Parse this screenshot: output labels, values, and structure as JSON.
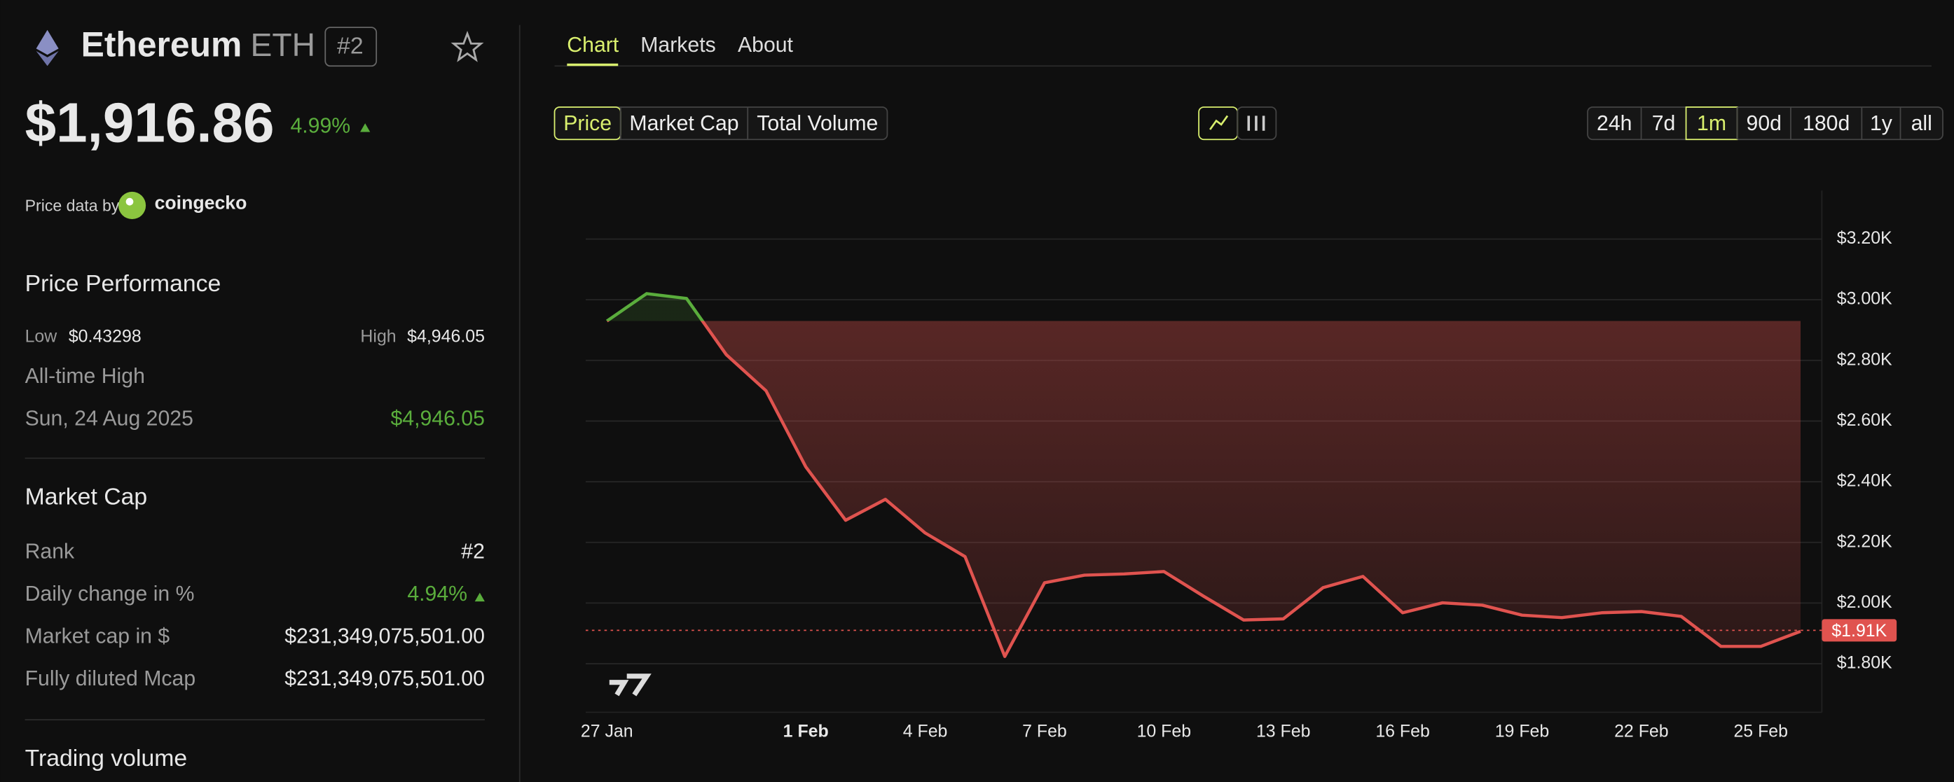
{
  "header": {
    "name": "Ethereum",
    "symbol": "ETH",
    "rank": "#2",
    "price": "$1,916.86",
    "change": "4.99%",
    "source_label": "Price data by",
    "source": "coingecko"
  },
  "performance": {
    "title": "Price Performance",
    "low_label": "Low",
    "low": "$0.43298",
    "high_label": "High",
    "high": "$4,946.05",
    "ath_label": "All-time High",
    "ath_date": "Sun, 24 Aug 2025",
    "ath_value": "$4,946.05"
  },
  "market_cap": {
    "title": "Market Cap",
    "rows": [
      [
        "Rank",
        "#2"
      ],
      [
        "Daily change in %",
        "4.94%"
      ],
      [
        "Market cap in $",
        "$231,349,075,501.00"
      ],
      [
        "Fully diluted Mcap",
        "$231,349,075,501.00"
      ]
    ]
  },
  "trading_volume": {
    "title": "Trading volume"
  },
  "tabs": [
    "Chart",
    "Markets",
    "About"
  ],
  "metric_tabs": [
    "Price",
    "Market Cap",
    "Total Volume"
  ],
  "ranges": [
    "24h",
    "7d",
    "1m",
    "90d",
    "180d",
    "1y",
    "all"
  ],
  "chart_data": {
    "type": "line",
    "categories": [
      "27 Jan",
      null,
      null,
      null,
      null,
      "1 Feb",
      null,
      null,
      "4 Feb",
      null,
      null,
      "7 Feb",
      null,
      null,
      "10 Feb",
      null,
      null,
      "13 Feb",
      null,
      null,
      "16 Feb",
      null,
      null,
      "19 Feb",
      null,
      null,
      "22 Feb",
      null,
      null,
      "25 Feb",
      null
    ],
    "values": [
      2930,
      3020,
      3004,
      2819,
      2700,
      2449,
      2273,
      2342,
      2231,
      2153,
      1824,
      2067,
      2092,
      2096,
      2104,
      2022,
      1944,
      1948,
      2051,
      2088,
      1968,
      2001,
      1993,
      1960,
      1952,
      1968,
      1972,
      1956,
      1857,
      1857,
      1907
    ],
    "up_color": "#5aad3c",
    "down_color": "#e0534f",
    "current_value": 1910,
    "current_label": "$1.91K",
    "ylim": [
      1640,
      3360
    ],
    "yticks": [
      {
        "value": 1800,
        "label": "$1.80K"
      },
      {
        "value": 2000,
        "label": "$2.00K"
      },
      {
        "value": 2200,
        "label": "$2.20K"
      },
      {
        "value": 2400,
        "label": "$2.40K"
      },
      {
        "value": 2600,
        "label": "$2.60K"
      },
      {
        "value": 2800,
        "label": "$2.80K"
      },
      {
        "value": 3000,
        "label": "$3.00K"
      },
      {
        "value": 3200,
        "label": "$3.20K"
      }
    ],
    "grid": true
  }
}
